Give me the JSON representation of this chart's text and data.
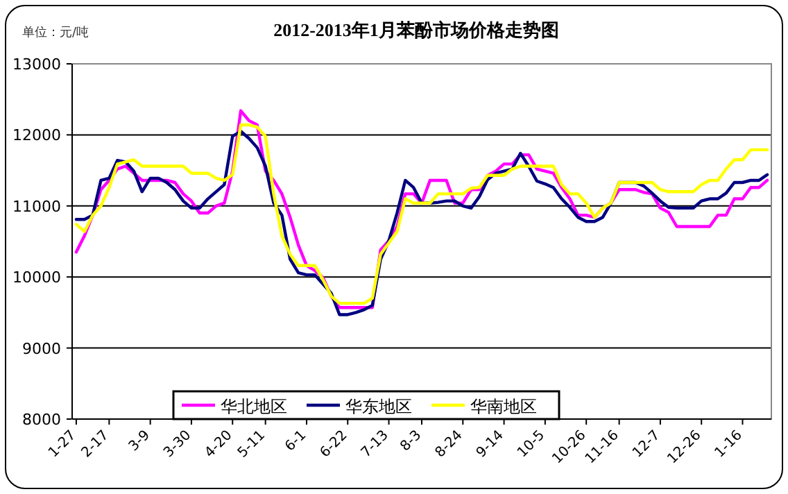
{
  "chart_data": {
    "type": "line",
    "title": "2012-2013年1月苯酚市场价格走势图",
    "annotations": [
      "单位：元/吨"
    ],
    "categories": [
      "1-27",
      null,
      null,
      null,
      "2-17",
      null,
      null,
      null,
      null,
      "3-9",
      null,
      null,
      null,
      null,
      "3-30",
      null,
      null,
      null,
      null,
      "4-20",
      null,
      null,
      null,
      "5-11",
      null,
      null,
      null,
      null,
      "6-1",
      null,
      null,
      null,
      null,
      "6-22",
      null,
      null,
      null,
      null,
      "7-13",
      null,
      null,
      null,
      "8-3",
      null,
      null,
      null,
      null,
      "8-24",
      null,
      null,
      null,
      null,
      "9-14",
      null,
      null,
      null,
      null,
      "10-5",
      null,
      null,
      null,
      null,
      "10-26",
      null,
      null,
      null,
      "11-16",
      null,
      null,
      null,
      null,
      "12-7",
      null,
      null,
      null,
      null,
      "12-26",
      null,
      null,
      null,
      null,
      "1-16",
      null,
      null,
      null
    ],
    "series": [
      {
        "name": "华北地区",
        "color": "#ff00ff",
        "values": [
          10350,
          10580,
          10870,
          11230,
          11360,
          11520,
          11560,
          11460,
          11360,
          11360,
          11360,
          11360,
          11330,
          11170,
          11070,
          10900,
          10900,
          11000,
          11040,
          11490,
          12340,
          12200,
          12140,
          11490,
          11360,
          11170,
          10840,
          10450,
          10160,
          10090,
          9990,
          9730,
          9570,
          9570,
          9570,
          9570,
          9570,
          10380,
          10510,
          10710,
          11170,
          11170,
          11040,
          11360,
          11360,
          11360,
          11040,
          11040,
          11230,
          11230,
          11430,
          11490,
          11590,
          11590,
          11720,
          11720,
          11520,
          11490,
          11460,
          11260,
          11100,
          10870,
          10870,
          10840,
          10970,
          11040,
          11230,
          11230,
          11230,
          11190,
          11170,
          10970,
          10910,
          10710,
          10710,
          10710,
          10710,
          10710,
          10870,
          10870,
          11100,
          11100,
          11260,
          11260,
          11360
        ]
      },
      {
        "name": "华东地区",
        "color": "#000080",
        "values": [
          10810,
          10810,
          10870,
          11360,
          11390,
          11640,
          11620,
          11490,
          11200,
          11390,
          11390,
          11330,
          11230,
          11070,
          10970,
          10970,
          11100,
          11200,
          11300,
          11980,
          12050,
          11950,
          11820,
          11560,
          11040,
          10870,
          10250,
          10060,
          10030,
          10030,
          9900,
          9770,
          9470,
          9470,
          9500,
          9540,
          9600,
          10250,
          10510,
          10900,
          11360,
          11260,
          11040,
          11040,
          11050,
          11070,
          11070,
          11000,
          10970,
          11130,
          11370,
          11460,
          11490,
          11520,
          11740,
          11560,
          11350,
          11310,
          11260,
          11100,
          10980,
          10840,
          10780,
          10780,
          10840,
          11040,
          11330,
          11330,
          11330,
          11280,
          11180,
          11070,
          10980,
          10970,
          10970,
          10970,
          11070,
          11100,
          11100,
          11180,
          11330,
          11330,
          11360,
          11360,
          11440
        ]
      },
      {
        "name": "华南地区",
        "color": "#ffff00",
        "values": [
          10740,
          10640,
          10870,
          11000,
          11260,
          11590,
          11620,
          11650,
          11560,
          11560,
          11560,
          11560,
          11560,
          11560,
          11460,
          11460,
          11460,
          11390,
          11360,
          11440,
          12140,
          12140,
          12110,
          11980,
          11170,
          10580,
          10320,
          10160,
          10160,
          10160,
          9960,
          9730,
          9630,
          9630,
          9630,
          9630,
          9700,
          10320,
          10480,
          10640,
          11100,
          11040,
          11040,
          11040,
          11170,
          11170,
          11170,
          11170,
          11250,
          11260,
          11430,
          11430,
          11430,
          11520,
          11560,
          11560,
          11560,
          11560,
          11560,
          11300,
          11170,
          11170,
          11040,
          10840,
          10970,
          11040,
          11330,
          11330,
          11330,
          11330,
          11330,
          11230,
          11200,
          11200,
          11200,
          11200,
          11300,
          11360,
          11360,
          11520,
          11650,
          11650,
          11790,
          11790,
          11790
        ]
      }
    ],
    "ylim": [
      8000,
      13000
    ],
    "yticks": [
      8000,
      9000,
      10000,
      11000,
      12000,
      13000
    ],
    "grid": "y",
    "legend": "bottom",
    "marker": "none",
    "line_style": "solid"
  }
}
